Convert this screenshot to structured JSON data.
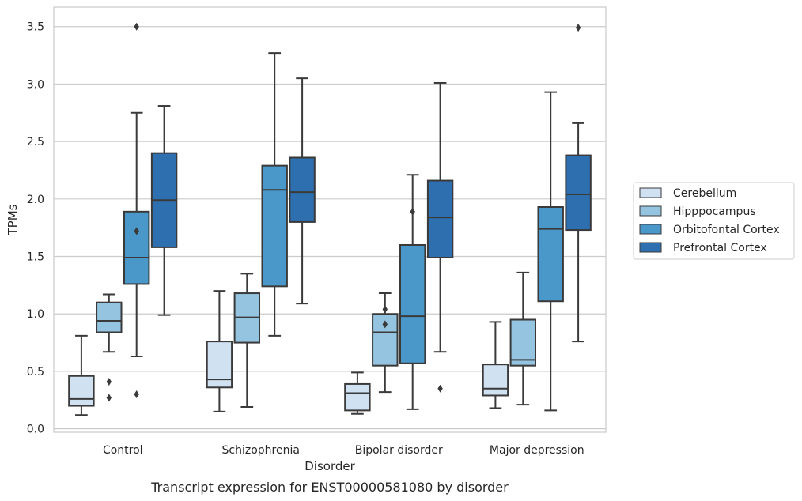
{
  "chart_data": {
    "type": "boxplot",
    "caption": "Transcript expression for ENST00000581080 by disorder",
    "xlabel": "Disorder",
    "ylabel": "TPMs",
    "ylim": [
      -0.03,
      3.67
    ],
    "yticks": [
      "0.0",
      "0.5",
      "1.0",
      "1.5",
      "2.0",
      "2.5",
      "3.0",
      "3.5"
    ],
    "grid": "horizontal",
    "legend_placement": "right",
    "categories": [
      "Control",
      "Schizophrenia",
      "Bipolar disorder",
      "Major depression"
    ],
    "series": [
      {
        "name": "Cerebellum",
        "color": "#d0e1f2",
        "boxes": [
          {
            "whislo": 0.12,
            "q1": 0.2,
            "med": 0.26,
            "q3": 0.46,
            "whishi": 0.81,
            "fliers": []
          },
          {
            "whislo": 0.15,
            "q1": 0.36,
            "med": 0.43,
            "q3": 0.76,
            "whishi": 1.2,
            "fliers": []
          },
          {
            "whislo": 0.13,
            "q1": 0.16,
            "med": 0.31,
            "q3": 0.39,
            "whishi": 0.49,
            "fliers": []
          },
          {
            "whislo": 0.18,
            "q1": 0.29,
            "med": 0.35,
            "q3": 0.56,
            "whishi": 0.93,
            "fliers": []
          }
        ]
      },
      {
        "name": "Hipppocampus",
        "color": "#94c4df",
        "boxes": [
          {
            "whislo": 0.67,
            "q1": 0.84,
            "med": 0.94,
            "q3": 1.1,
            "whishi": 1.17,
            "fliers": [
              0.41,
              0.27
            ]
          },
          {
            "whislo": 0.19,
            "q1": 0.75,
            "med": 0.97,
            "q3": 1.18,
            "whishi": 1.35,
            "fliers": []
          },
          {
            "whislo": 0.32,
            "q1": 0.55,
            "med": 0.84,
            "q3": 1.0,
            "whishi": 1.18,
            "fliers": [
              1.04,
              0.91
            ]
          },
          {
            "whislo": 0.21,
            "q1": 0.55,
            "med": 0.6,
            "q3": 0.95,
            "whishi": 1.36,
            "fliers": []
          }
        ]
      },
      {
        "name": "Orbitofontal Cortex",
        "color": "#4a98c9",
        "boxes": [
          {
            "whislo": 0.63,
            "q1": 1.26,
            "med": 1.49,
            "q3": 1.89,
            "whishi": 2.75,
            "fliers": [
              1.72,
              0.3,
              3.5
            ]
          },
          {
            "whislo": 0.81,
            "q1": 1.24,
            "med": 2.08,
            "q3": 2.29,
            "whishi": 3.27,
            "fliers": []
          },
          {
            "whislo": 0.17,
            "q1": 0.57,
            "med": 0.98,
            "q3": 1.6,
            "whishi": 2.21,
            "fliers": [
              1.89
            ]
          },
          {
            "whislo": 0.16,
            "q1": 1.11,
            "med": 1.74,
            "q3": 1.93,
            "whishi": 2.93,
            "fliers": []
          }
        ]
      },
      {
        "name": "Prefrontal Cortex",
        "color": "#2e6fb0",
        "boxes": [
          {
            "whislo": 0.99,
            "q1": 1.58,
            "med": 1.99,
            "q3": 2.4,
            "whishi": 2.81,
            "fliers": []
          },
          {
            "whislo": 1.09,
            "q1": 1.8,
            "med": 2.06,
            "q3": 2.36,
            "whishi": 3.05,
            "fliers": []
          },
          {
            "whislo": 0.67,
            "q1": 1.49,
            "med": 1.84,
            "q3": 2.16,
            "whishi": 3.01,
            "fliers": [
              0.35
            ]
          },
          {
            "whislo": 0.76,
            "q1": 1.73,
            "med": 2.04,
            "q3": 2.38,
            "whishi": 2.66,
            "fliers": [
              3.49
            ]
          }
        ]
      }
    ]
  }
}
